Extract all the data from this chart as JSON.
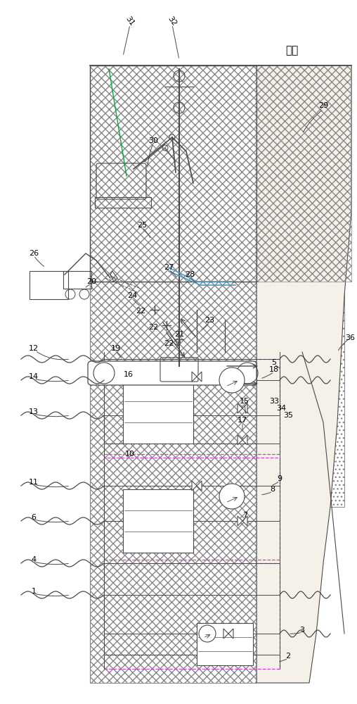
{
  "bg_color": "#ffffff",
  "lc": "#888888",
  "dc": "#4a4a4a",
  "mc": "#cc44cc",
  "ground_label": "地面",
  "figsize": [
    5.08,
    10.0
  ],
  "dpi": 100
}
